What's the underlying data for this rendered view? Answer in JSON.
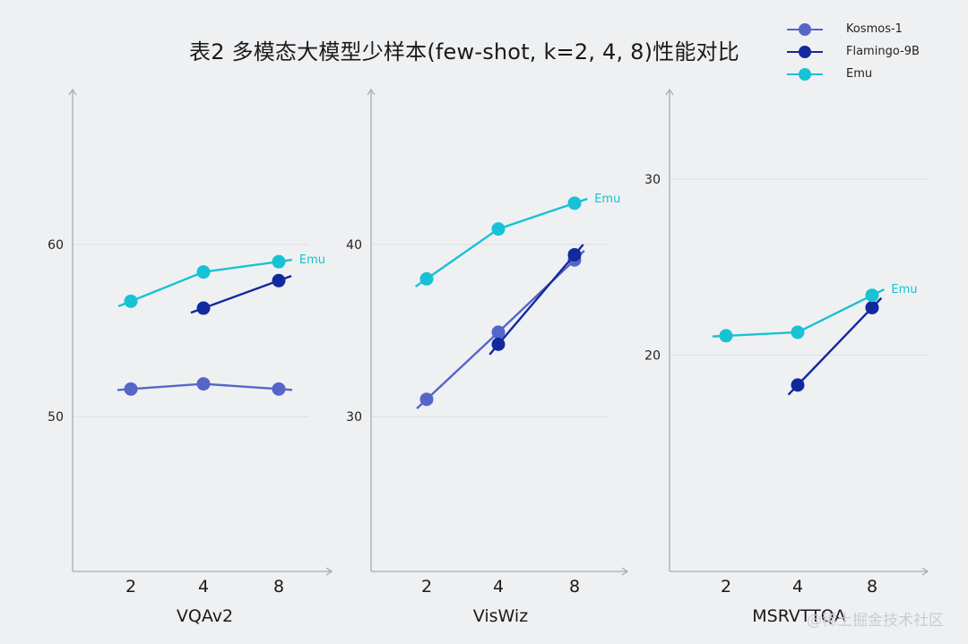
{
  "title": "表2 多模态大模型少样本(few-shot, k=2, 4, 8)性能对比",
  "legend": [
    {
      "label": "Kosmos-1",
      "color": "#5566c8"
    },
    {
      "label": "Flamingo-9B",
      "color": "#12299e"
    },
    {
      "label": "Emu",
      "color": "#17c2d4"
    }
  ],
  "watermark": "@稀土掘金技术社区",
  "chart_data": [
    {
      "type": "line",
      "title": "VQAv2",
      "xlabel": "VQAv2",
      "ylabel": "",
      "categories": [
        "2",
        "4",
        "8"
      ],
      "yticks": [
        50,
        60
      ],
      "ylim": [
        41,
        69
      ],
      "grid": true,
      "series": [
        {
          "name": "Kosmos-1",
          "values": [
            51.6,
            51.9,
            51.6
          ]
        },
        {
          "name": "Flamingo-9B",
          "values": [
            null,
            56.3,
            57.9
          ]
        },
        {
          "name": "Emu",
          "values": [
            56.7,
            58.4,
            59.0
          ]
        }
      ],
      "annotation": "Emu"
    },
    {
      "type": "line",
      "title": "VisWiz",
      "xlabel": "VisWiz",
      "ylabel": "",
      "categories": [
        "2",
        "4",
        "8"
      ],
      "yticks": [
        30,
        40
      ],
      "ylim": [
        21,
        49
      ],
      "grid": true,
      "series": [
        {
          "name": "Kosmos-1",
          "values": [
            31.0,
            34.9,
            39.1
          ]
        },
        {
          "name": "Flamingo-9B",
          "values": [
            null,
            34.2,
            39.4
          ]
        },
        {
          "name": "Emu",
          "values": [
            38.0,
            40.9,
            42.4
          ]
        }
      ],
      "annotation": "Emu"
    },
    {
      "type": "line",
      "title": "MSRVTTQA",
      "xlabel": "MSRVTTQA",
      "ylabel": "",
      "categories": [
        "2",
        "4",
        "8"
      ],
      "yticks": [
        20,
        30
      ],
      "ylim": [
        7.7,
        35.1
      ],
      "grid": true,
      "series": [
        {
          "name": "Flamingo-9B",
          "values": [
            null,
            18.3,
            22.7
          ]
        },
        {
          "name": "Emu",
          "values": [
            21.1,
            21.3,
            23.4
          ]
        }
      ],
      "annotation": "Emu"
    }
  ]
}
